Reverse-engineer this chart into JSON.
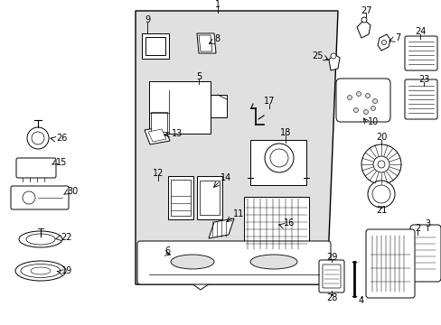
{
  "bg_color": "#ffffff",
  "panel_color": "#e0e0e0",
  "line_color": "#000000",
  "text_color": "#000000",
  "figsize": [
    4.89,
    3.6
  ],
  "dpi": 100
}
